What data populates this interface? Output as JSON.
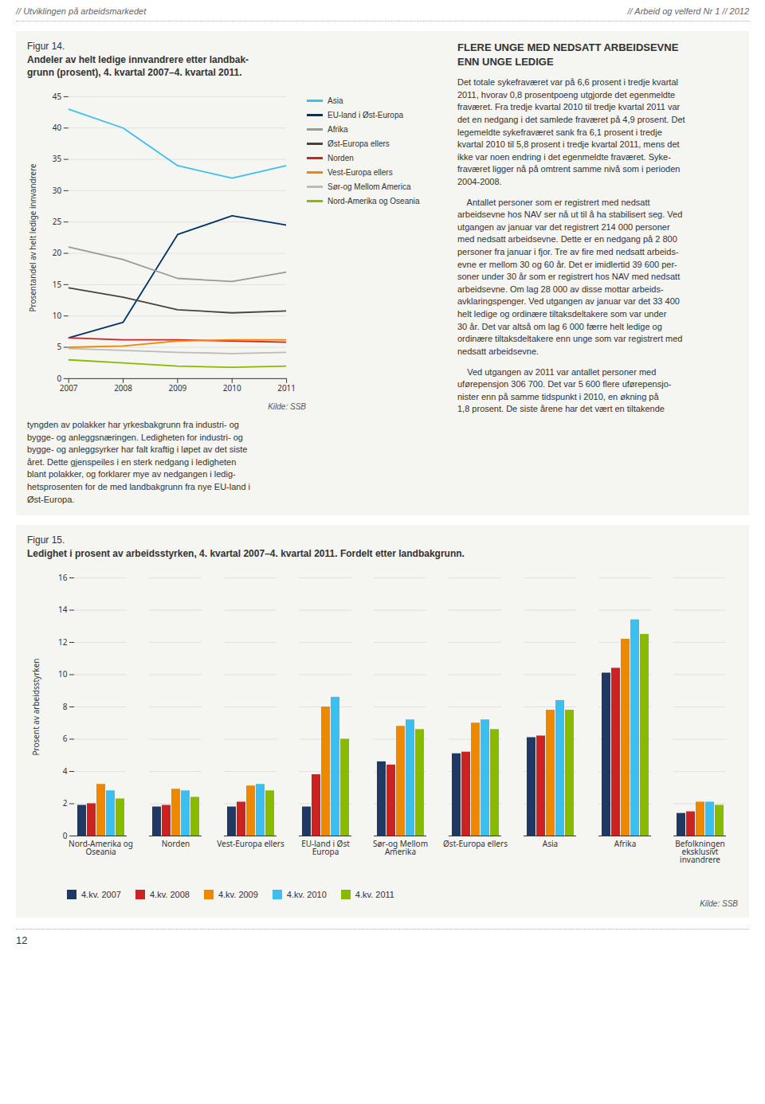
{
  "annotations": [
    "// Utviklingen på arbeidsmarkedet",
    "// Arbeid og velferd Nr 1 // 2012",
    "12"
  ],
  "chart_data": [
    {
      "type": "line",
      "title": "Figur 14.",
      "subtitle": "Andeler av helt ledige innvandrere etter landbak-\ngrunn (prosent), 4. kvartal 2007–4. kvartal 2011.",
      "ylabel": "Prosentandel av helt ledige innvandrere",
      "x": [
        2007,
        2008,
        2009,
        2010,
        2011
      ],
      "xlim": [
        2007,
        2011
      ],
      "xticks": [
        2007,
        2008,
        2009,
        2010,
        2011
      ],
      "ylim": [
        0,
        45
      ],
      "yticks": [
        0,
        5,
        10,
        15,
        20,
        25,
        30,
        35,
        40,
        45
      ],
      "grid": true,
      "legend": "right",
      "series": [
        {
          "name": "Asia",
          "color": "#3BBFEF",
          "values": [
            43,
            40,
            34,
            32,
            34
          ]
        },
        {
          "name": "EU-land i Øst-Europa",
          "color": "#003366",
          "values": [
            6.5,
            9.0,
            23.0,
            26.0,
            24.5
          ]
        },
        {
          "name": "Afrika",
          "color": "#999999",
          "values": [
            21.0,
            19.0,
            16.0,
            15.5,
            17.0
          ]
        },
        {
          "name": "Øst-Europa ellers",
          "color": "#444444",
          "values": [
            14.5,
            13.0,
            11.0,
            10.5,
            10.8
          ]
        },
        {
          "name": "Norden",
          "color": "#CC2222",
          "values": [
            6.5,
            6.2,
            6.2,
            6.0,
            5.8
          ]
        },
        {
          "name": "Vest-Europa ellers",
          "color": "#EE8800",
          "values": [
            5.0,
            5.2,
            6.0,
            6.2,
            6.2
          ]
        },
        {
          "name": "Sør-og Mellom America",
          "color": "#BBBBBB",
          "values": [
            4.8,
            4.5,
            4.2,
            4.0,
            4.2
          ]
        },
        {
          "name": "Nord-Amerika og Oseania",
          "color": "#88BB00",
          "values": [
            3.0,
            2.5,
            2.0,
            1.8,
            2.0
          ]
        }
      ],
      "annotations": [
        "Kilde: SSB",
        "FLERE UNGE MED NEDSATT ARBEIDSEVNE",
        "ENN UNGE LEDIGE",
        "Det totale sykefraværet var på 6,6 prosent i tredje kvartal\n2011, hvorav 0,8 prosentpoeng utgjorde det egenmeldte\nfraværet. Fra tredje kvartal 2010 til tredje kvartal 2011 var\ndet en nedgang i det samlede fraværet på 4,9 prosent. Det\nlegemeldte sykefraværet sank fra 6,1 prosent i tredje\nkvartal 2010 til 5,8 prosent i tredje kvartal 2011, mens det\nikke var noen endring i det egenmeldte fraværet. Syke-\nfraværet ligger nå på omtrent samme nivå som i perioden\n2004-2008.",
        "    Antallet personer som er registrert med nedsatt\narbeidsevne hos NAV ser nå ut til å ha stabilisert seg. Ved\nutgangen av januar var det registrert 214 000 personer\nmed nedsatt arbeidsevne. Dette er en nedgang på 2 800\npersoner fra januar i fjor. Tre av fire med nedsatt arbeids-\nevne er mellom 30 og 60 år. Det er imidlertid 39 600 per-\nsoner under 30 år som er registrert hos NAV med nedsatt\narbeidsevne. Om lag 28 000 av disse mottar arbeids-\navklaringspenger. Ved utgangen av januar var det 33 400\nhelt ledige og ordinære tiltaksdeltakere som var under\n30 år. Det var altså om lag 6 000 færre helt ledige og\nordinære tiltaksdeltakere enn unge som var registrert med\nnedsatt arbeidsevne.",
        "    Ved utgangen av 2011 var antallet personer med\nuførepensjon 306 700. Det var 5 600 flere uførepensjo-\nnister enn på samme tidspunkt i 2010, en økning på\n1,8 prosent. De siste årene har det vært en tiltakende",
        "tyngden av polakker har yrkesbakgrunn fra industri- og\nbygge- og anleggsnæringen. Ledigheten for industri- og\nbygge- og anleggsyrker har falt kraftig i løpet av det siste\nåret. Dette gjenspeiles i en sterk nedgang i ledigheten\nblant polakker, og forklarer mye av nedgangen i ledig-\nhetsprosenten for de med landbakgrunn fra nye EU-land i\nØst-Europa."
      ]
    },
    {
      "type": "bar",
      "title": "Figur 15.",
      "subtitle": "Ledighet i prosent av arbeidsstyrken, 4. kvartal 2007–4. kvartal 2011. Fordelt etter landbakgrunn.",
      "ylabel": "Prosent av arbeidsstyrken",
      "categories": [
        "Nord-Amerika og\nOseania",
        "Norden",
        "Vest-Europa ellers",
        "EU-land i Øst\nEuropa",
        "Sør-og Mellom\nAmerika",
        "Øst-Europa ellers",
        "Asia",
        "Afrika",
        "Befolkningen\neksklusivt\ninvandrere"
      ],
      "series": [
        {
          "name": "4.kv. 2007",
          "color": "#1F3864",
          "values": [
            1.9,
            1.8,
            1.8,
            1.8,
            4.6,
            5.1,
            6.1,
            10.1,
            1.4
          ]
        },
        {
          "name": "4.kv. 2008",
          "color": "#CC2222",
          "values": [
            2.0,
            1.9,
            2.1,
            3.8,
            4.4,
            5.2,
            6.2,
            10.4,
            1.5
          ]
        },
        {
          "name": "4.kv. 2009",
          "color": "#EE8800",
          "values": [
            3.2,
            2.9,
            3.1,
            8.0,
            6.8,
            7.0,
            7.8,
            12.2,
            2.1
          ]
        },
        {
          "name": "4.kv. 2010",
          "color": "#3BBFEF",
          "values": [
            2.8,
            2.8,
            3.2,
            8.6,
            7.2,
            7.2,
            8.4,
            13.4,
            2.1
          ]
        },
        {
          "name": "4.kv. 2011",
          "color": "#88BB00",
          "values": [
            2.3,
            2.4,
            2.8,
            6.0,
            6.6,
            6.6,
            7.8,
            12.5,
            1.9
          ]
        }
      ],
      "ylim": [
        0,
        16
      ],
      "yticks": [
        0,
        2,
        4,
        6,
        8,
        10,
        12,
        14,
        16
      ],
      "grid": true,
      "legend": "bottom",
      "annotations": [
        "Kilde: SSB"
      ]
    }
  ]
}
